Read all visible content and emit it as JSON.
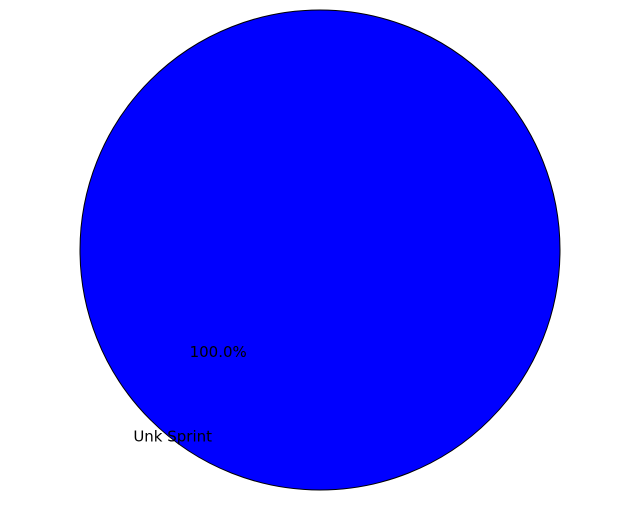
{
  "chart_data": {
    "type": "pie",
    "slices": [
      {
        "label": "Unk Sprint",
        "value": 100.0,
        "pct_label": "100.0%",
        "color": "#0000ff"
      }
    ],
    "edge_color": "#000000"
  }
}
